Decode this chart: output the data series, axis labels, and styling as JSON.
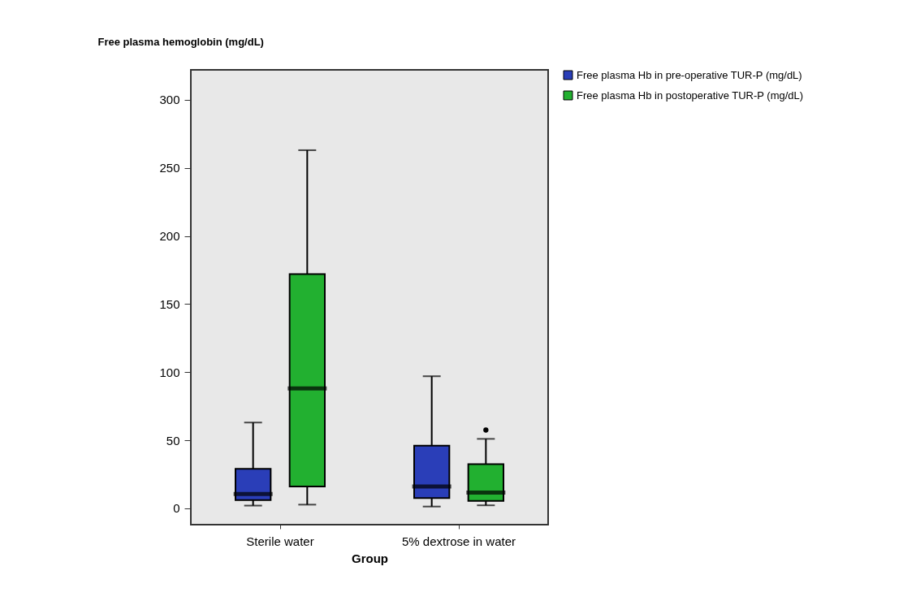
{
  "chart_data": {
    "type": "box",
    "ylabel": "Free plasma hemoglobin (mg/dL)",
    "xlabel": "Group",
    "categories": [
      "Sterile water",
      "5% dextrose in water"
    ],
    "series": [
      {
        "name": "Free plasma Hb in pre-operative TUR-P (mg/dL)",
        "color": "#2a3eb8",
        "boxes": [
          {
            "low": 2,
            "q1": 6,
            "median": 10.5,
            "q3": 29,
            "high": 63
          },
          {
            "low": 1.3,
            "q1": 7.5,
            "median": 16,
            "q3": 46,
            "high": 97
          }
        ]
      },
      {
        "name": "Free plasma Hb in postoperative TUR-P (mg/dL)",
        "color": "#22b030",
        "boxes": [
          {
            "low": 2.7,
            "q1": 16,
            "median": 88,
            "q3": 172,
            "high": 263
          },
          {
            "low": 2.2,
            "q1": 5.4,
            "median": 11.5,
            "q3": 32.5,
            "high": 51,
            "outliers": [
              57.5
            ]
          }
        ]
      }
    ],
    "ylim": [
      -12,
      322
    ],
    "yticks": [
      0,
      50,
      100,
      150,
      200,
      250,
      300
    ],
    "grid": false,
    "legend": "top right"
  }
}
